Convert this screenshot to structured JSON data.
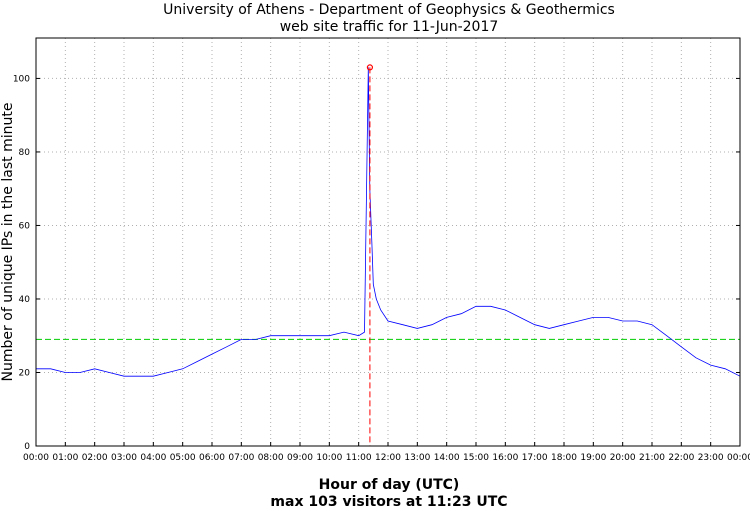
{
  "chart_data": {
    "type": "line",
    "title": "University of Athens - Department of Geophysics & Geothermics",
    "subtitle": "web site traffic for 11-Jun-2017",
    "xlabel": "Hour of day (UTC)",
    "xlabel2": "max 103 visitors at 11:23 UTC",
    "ylabel": "Number of unique IPs in the last minute",
    "xlim_hours": [
      0,
      24
    ],
    "ylim": [
      0,
      111
    ],
    "x_tick_labels": [
      "00:00",
      "01:00",
      "02:00",
      "03:00",
      "04:00",
      "05:00",
      "06:00",
      "07:00",
      "08:00",
      "09:00",
      "10:00",
      "11:00",
      "12:00",
      "13:00",
      "14:00",
      "15:00",
      "16:00",
      "17:00",
      "18:00",
      "19:00",
      "20:00",
      "21:00",
      "22:00",
      "23:00",
      "00:00"
    ],
    "y_ticks": [
      0,
      20,
      40,
      60,
      80,
      100
    ],
    "grid": true,
    "mean_value": 29,
    "max": {
      "time": "11:23",
      "value": 103
    },
    "series": [
      {
        "color": "#0000ff",
        "x_hours": [
          0,
          0.5,
          1,
          1.5,
          2,
          2.5,
          3,
          3.5,
          4,
          4.5,
          5,
          5.5,
          6,
          6.5,
          7,
          7.5,
          8,
          8.5,
          9,
          9.5,
          10,
          10.5,
          11,
          11.2,
          11.33,
          11.38,
          11.45,
          11.5,
          11.6,
          11.75,
          12,
          12.5,
          13,
          13.5,
          14,
          14.5,
          15,
          15.5,
          16,
          16.5,
          17,
          17.5,
          18,
          18.5,
          19,
          19.5,
          20,
          20.5,
          21,
          21.5,
          22,
          22.5,
          23,
          23.5,
          24
        ],
        "y": [
          21,
          21,
          20,
          20,
          21,
          20,
          19,
          19,
          19,
          20,
          21,
          23,
          25,
          27,
          29,
          29,
          30,
          30,
          30,
          30,
          30,
          31,
          30,
          31,
          103,
          70,
          55,
          44,
          40,
          37,
          34,
          33,
          32,
          33,
          35,
          36,
          38,
          38,
          37,
          35,
          33,
          32,
          33,
          34,
          35,
          35,
          34,
          34,
          33,
          30,
          27,
          24,
          22,
          21,
          19
        ]
      }
    ],
    "colors": {
      "series": "#0000ff",
      "mean_line": "#00cc00",
      "max_marker": "#ff0000"
    }
  }
}
